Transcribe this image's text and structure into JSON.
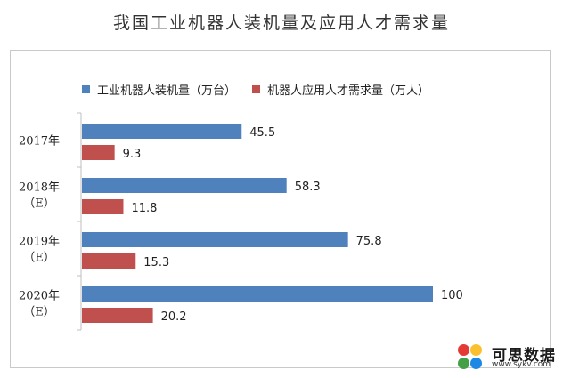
{
  "chart_data": {
    "type": "bar",
    "orientation": "horizontal",
    "title": "我国工业机器人装机量及应用人才需求量",
    "categories": [
      "2017年",
      "2018年\n（E）",
      "2019年\n（E）",
      "2020年\n（E）"
    ],
    "series": [
      {
        "name": "工业机器人装机量（万台）",
        "values": [
          45.5,
          58.3,
          75.8,
          100
        ],
        "color": "#4f81bd"
      },
      {
        "name": "机器人应用人才需求量（万人）",
        "values": [
          9.3,
          11.8,
          15.3,
          20.2
        ],
        "color": "#c0504d"
      }
    ],
    "value_labels": [
      [
        "45.5",
        "58.3",
        "75.8",
        "100"
      ],
      [
        "9.3",
        "11.8",
        "15.3",
        "20.2"
      ]
    ],
    "xlim": [
      0,
      100
    ],
    "grid": false,
    "legend_position": "top-left"
  },
  "watermark": {
    "name": "可思数据",
    "url": "www.sykv.com",
    "dot_colors": [
      "#e53935",
      "#fbc02d",
      "#43a047",
      "#1e88e5"
    ]
  }
}
